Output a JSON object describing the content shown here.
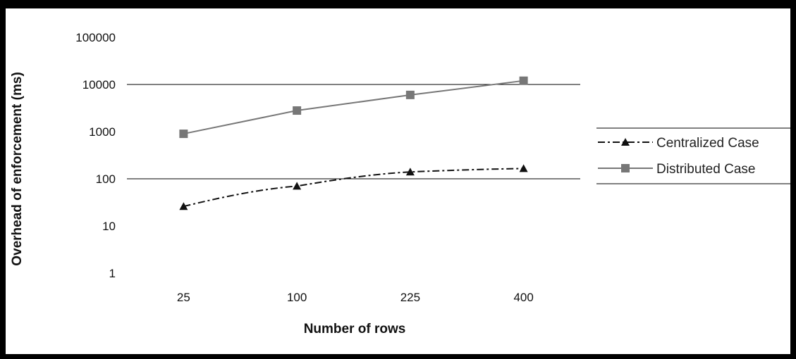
{
  "chart_data": {
    "type": "line",
    "title": "",
    "xlabel": "Number of rows",
    "ylabel": "Overhead of enforcement  (ms)",
    "y_scale": "log",
    "ylim": [
      1,
      100000
    ],
    "y_ticks": [
      "1",
      "10",
      "100",
      "1000",
      "10000",
      "100000"
    ],
    "categories": [
      "25",
      "100",
      "225",
      "400"
    ],
    "gridlines_at": [
      100,
      10000
    ],
    "legend_position": "right",
    "series": [
      {
        "name": "Centralized Case",
        "values": [
          26,
          70,
          140,
          165
        ],
        "color": "#111111",
        "marker": "triangle",
        "line_style": "dash-dot"
      },
      {
        "name": "Distributed Case",
        "values": [
          900,
          2800,
          6000,
          12000
        ],
        "color": "#777777",
        "marker": "square",
        "line_style": "solid"
      }
    ]
  }
}
